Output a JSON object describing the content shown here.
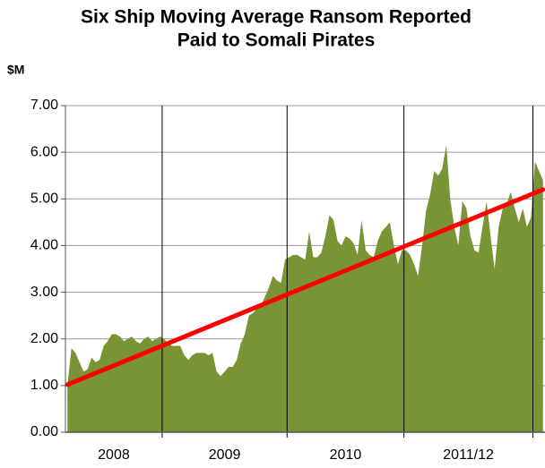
{
  "chart_data": {
    "type": "area",
    "title": [
      "Six Ship Moving Average Ransom Reported",
      "Paid to Somali Pirates"
    ],
    "y_label": "$M",
    "color": "#789434",
    "trend_color": "#ff0000",
    "grid": true,
    "ylim": [
      0,
      7
    ],
    "yticks": [
      {
        "value": 0,
        "label": "0.00"
      },
      {
        "value": 1,
        "label": "1.00"
      },
      {
        "value": 2,
        "label": "2.00"
      },
      {
        "value": 3,
        "label": "3.00"
      },
      {
        "value": 4,
        "label": "4.00"
      },
      {
        "value": 5,
        "label": "5.00"
      },
      {
        "value": 6,
        "label": "6.00"
      },
      {
        "value": 7,
        "label": "7.00"
      }
    ],
    "periods": [
      {
        "label": "2008",
        "values": [
          1.0,
          1.8,
          1.7,
          1.5,
          1.3,
          1.35,
          1.6,
          1.5,
          1.55,
          1.85,
          1.95,
          2.1,
          2.1,
          2.05,
          1.95,
          2.0,
          2.05,
          1.95,
          1.9,
          2.0,
          2.05,
          1.95,
          2.0,
          2.05
        ]
      },
      {
        "label": "2009",
        "values": [
          2.0,
          1.9,
          1.85,
          1.85,
          1.85,
          1.65,
          1.55,
          1.65,
          1.7,
          1.7,
          1.7,
          1.65,
          1.7,
          1.3,
          1.2,
          1.3,
          1.4,
          1.4,
          1.55,
          1.9,
          2.1,
          2.5,
          2.55,
          2.65,
          2.7,
          2.9,
          3.1,
          3.35,
          3.25,
          3.2,
          3.7
        ]
      },
      {
        "label": "2010",
        "values": [
          3.75,
          3.8,
          3.8,
          3.75,
          3.7,
          4.3,
          3.75,
          3.75,
          3.85,
          4.2,
          4.65,
          4.55,
          4.1,
          4.0,
          4.2,
          4.15,
          4.05,
          3.8,
          4.55,
          3.9,
          3.8,
          3.75,
          4.1,
          4.3,
          4.4,
          4.5,
          4.0,
          3.6,
          3.9
        ]
      },
      {
        "label": "2011/12",
        "values": [
          3.9,
          3.8,
          3.6,
          3.35,
          4.0,
          4.75,
          5.1,
          5.6,
          5.5,
          5.65,
          6.15,
          5.0,
          4.4,
          4.0,
          4.95,
          4.8,
          4.2,
          3.9,
          3.85,
          4.4,
          4.95,
          4.2,
          3.5,
          4.4,
          4.8,
          4.9,
          5.15,
          4.8,
          4.5,
          4.8,
          4.4,
          4.6
        ]
      },
      {
        "label": null,
        "values": [
          5.8,
          5.6,
          5.4
        ]
      }
    ],
    "trend": [
      1.02,
      5.2
    ]
  }
}
